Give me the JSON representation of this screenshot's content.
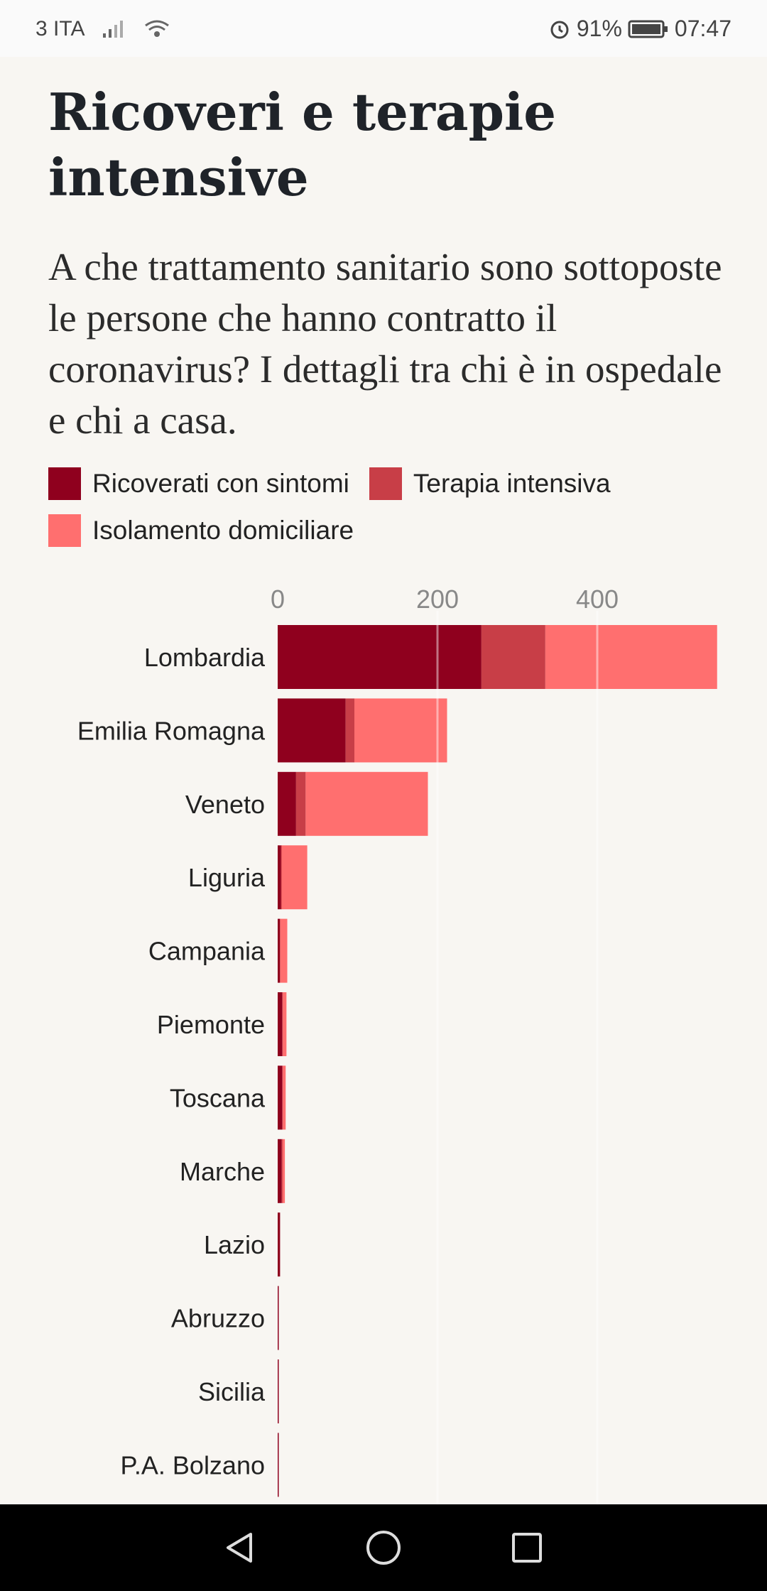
{
  "status_bar": {
    "carrier": "3 ITA",
    "battery": "91%",
    "time": "07:47"
  },
  "title": "Ricoveri e terapie intensive",
  "subtitle": "A che trattamento sanitario sono sottoposte le persone che hanno contratto il coronavirus? I dettagli tra chi è in ospedale e chi a casa.",
  "colors": {
    "ricoverati": "#8f001e",
    "terapia": "#c83e47",
    "isolamento": "#ff6f6f",
    "grid": "#ffffff",
    "tick": "#888888"
  },
  "chart_data": {
    "type": "bar",
    "orientation": "horizontal",
    "stacked": true,
    "categories": [
      "Lombardia",
      "Emilia Romagna",
      "Veneto",
      "Liguria",
      "Campania",
      "Piemonte",
      "Toscana",
      "Marche",
      "Lazio",
      "Abruzzo",
      "Sicilia",
      "P.A. Bolzano"
    ],
    "series": [
      {
        "name": "Ricoverati con sintomi",
        "values": [
          255,
          85,
          23,
          4,
          3,
          6,
          6,
          5,
          3,
          1,
          1,
          1
        ]
      },
      {
        "name": "Terapia intensiva",
        "values": [
          80,
          11,
          12,
          1,
          0,
          0,
          0,
          1,
          0,
          0,
          0,
          0
        ]
      },
      {
        "name": "Isolamento domiciliare",
        "values": [
          215,
          116,
          153,
          32,
          9,
          5,
          4,
          3,
          0,
          0,
          0,
          0
        ]
      }
    ],
    "xticks": [
      0,
      200,
      400
    ],
    "xtick_labels": [
      "0",
      "200",
      "400"
    ],
    "xlim": [
      0,
      560
    ],
    "grid": true,
    "legend_placement": "top"
  },
  "nav": {
    "back": "back-icon",
    "home": "home-icon",
    "recents": "recents-icon"
  }
}
